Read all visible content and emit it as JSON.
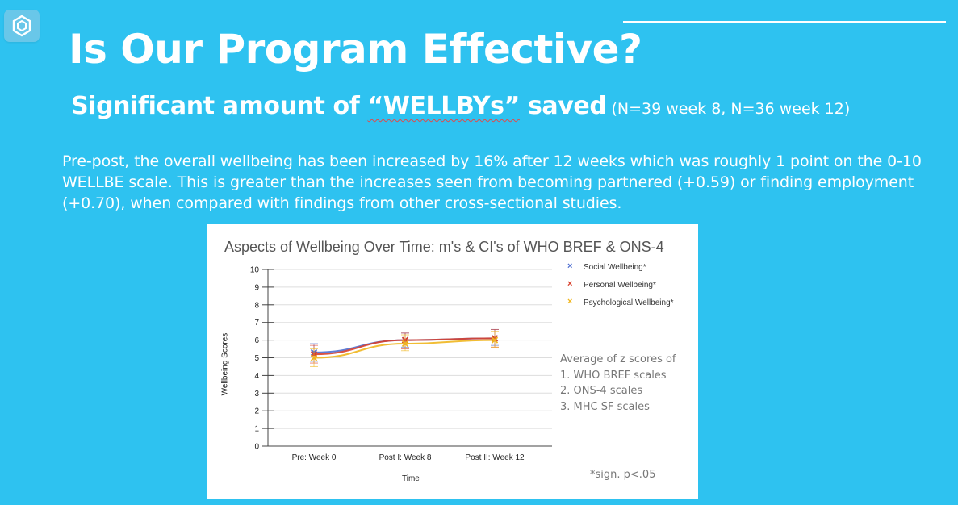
{
  "slide": {
    "title": "Is Our Program Effective?",
    "subtitle_prefix": "Significant amount of ",
    "subtitle_highlight": "“WELLBYs”",
    "subtitle_suffix": " saved",
    "subtitle_note": " (N=39 week 8, N=36 week 12)",
    "paragraph_text": "Pre-post, the overall wellbeing has been increased by 16% after 12 weeks which was roughly 1 point on the 0-10 WELLBE scale. This is greater than the increases seen from becoming partnered (+0.59) or finding employment (+0.70), when compared with findings from ",
    "paragraph_link": "other cross-sectional studies",
    "paragraph_end": ".",
    "logo_icon": "hexagon-logo-icon",
    "colors": {
      "background": "#2ec2f0",
      "text": "#ffffff"
    }
  },
  "chart_data": {
    "type": "line",
    "title": "Aspects of Wellbeing Over Time: m's & CI's of WHO BREF & ONS-4",
    "xlabel": "Time",
    "ylabel": "Wellbeing Scores",
    "categories": [
      "Pre: Week 0",
      "Post I: Week 8",
      "Post II: Week 12"
    ],
    "ylim": [
      0,
      10
    ],
    "yticks": [
      "0",
      "1",
      "2",
      "3",
      "4",
      "5",
      "6",
      "7",
      "8",
      "9",
      "10"
    ],
    "grid": true,
    "legend_position": "right",
    "series": [
      {
        "name": "Social Wellbeing*",
        "color": "#4f6fd0",
        "values": [
          5.3,
          6.0,
          6.1
        ],
        "ci_low": [
          4.8,
          5.6,
          5.7
        ],
        "ci_high": [
          5.8,
          6.4,
          6.6
        ]
      },
      {
        "name": "Personal Wellbeing*",
        "color": "#d8402c",
        "values": [
          5.2,
          6.0,
          6.1
        ],
        "ci_low": [
          4.7,
          5.5,
          5.6
        ],
        "ci_high": [
          5.7,
          6.4,
          6.6
        ]
      },
      {
        "name": "Psychological Wellbeing*",
        "color": "#f0b61e",
        "values": [
          5.0,
          5.8,
          6.0
        ],
        "ci_low": [
          4.5,
          5.4,
          5.6
        ],
        "ci_high": [
          5.5,
          6.3,
          6.5
        ]
      }
    ],
    "annotation_lines": [
      "Average of z scores of",
      "1. WHO BREF scales",
      "2. ONS-4 scales",
      "3. MHC SF scales"
    ],
    "footnote": "*sign. p<.05"
  }
}
